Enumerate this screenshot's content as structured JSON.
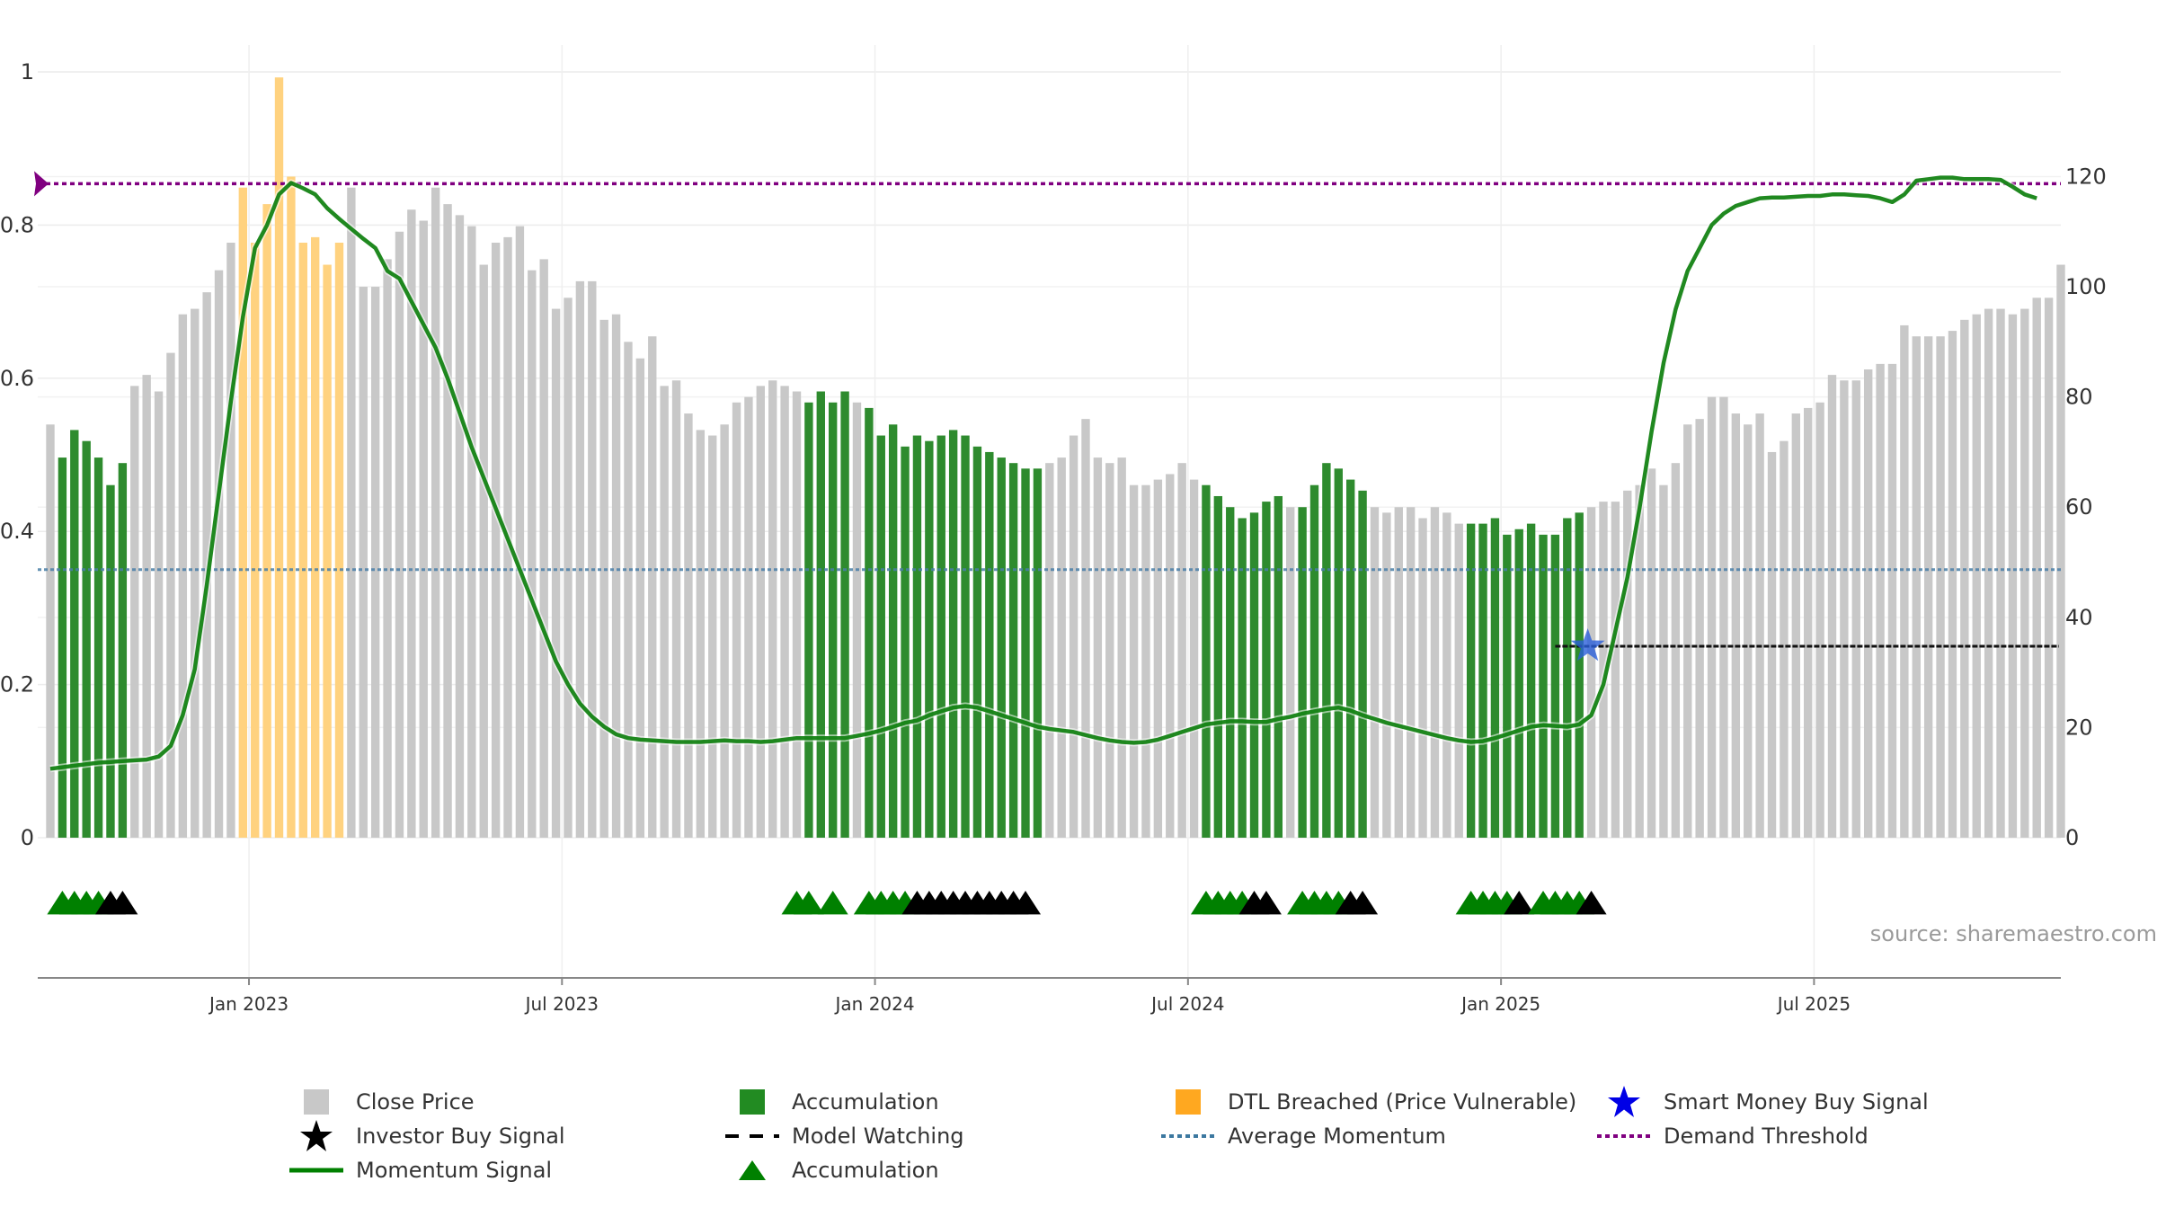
{
  "chart_data": {
    "type": "bar",
    "title": "",
    "xlabel": "",
    "ylabel": "",
    "left_ylim": [
      0,
      1.0
    ],
    "right_ylim": [
      0,
      139
    ],
    "left_ticks": [
      "0",
      "0.2",
      "0.4",
      "0.6",
      "0.8",
      "1"
    ],
    "right_ticks": [
      "0",
      "20",
      "40",
      "60",
      "80",
      "100",
      "120"
    ],
    "x_ticks": [
      "Jan 2023",
      "Jul 2023",
      "Jan 2024",
      "Jul 2024",
      "Jan 2025",
      "Jul 2025"
    ],
    "grid": true,
    "legend_position": "bottom",
    "close_price": [
      75,
      69,
      74,
      72,
      69,
      64,
      68,
      82,
      84,
      81,
      88,
      95,
      96,
      99,
      103,
      108,
      118,
      108,
      115,
      138,
      120,
      108,
      109,
      104,
      108,
      118,
      100,
      100,
      105,
      110,
      114,
      112,
      118,
      115,
      113,
      111,
      104,
      108,
      109,
      111,
      103,
      105,
      96,
      98,
      101,
      101,
      94,
      95,
      90,
      87,
      91,
      82,
      83,
      77,
      74,
      73,
      75,
      79,
      80,
      82,
      83,
      82,
      81,
      79,
      81,
      79,
      81,
      79,
      78,
      73,
      75,
      71,
      73,
      72,
      73,
      74,
      73,
      71,
      70,
      69,
      68,
      67,
      67,
      68,
      69,
      73,
      76,
      69,
      68,
      69,
      64,
      64,
      65,
      66,
      68,
      65,
      64,
      62,
      60,
      58,
      59,
      61,
      62,
      60,
      60,
      64,
      68,
      67,
      65,
      63,
      60,
      59,
      60,
      60,
      58,
      60,
      59,
      57,
      57,
      57,
      58,
      55,
      56,
      57,
      55,
      55,
      58,
      59,
      60,
      61,
      61,
      63,
      64,
      67,
      64,
      68,
      75,
      76,
      80,
      80,
      77,
      75,
      77,
      70,
      72,
      77,
      78,
      79,
      84,
      83,
      83,
      85,
      86,
      86,
      93,
      91,
      91,
      91,
      92,
      94,
      95,
      96,
      96,
      95,
      96,
      98,
      98,
      104
    ],
    "accumulation_bar_indices": [
      1,
      2,
      3,
      4,
      5,
      6,
      63,
      64,
      65,
      66,
      68,
      69,
      70,
      71,
      72,
      73,
      74,
      75,
      76,
      77,
      78,
      79,
      80,
      81,
      82,
      96,
      97,
      98,
      99,
      100,
      101,
      102,
      104,
      105,
      106,
      107,
      108,
      109,
      118,
      119,
      120,
      121,
      122,
      123,
      124,
      125,
      126,
      127
    ],
    "dtl_bar_indices": [
      16,
      17,
      18,
      19,
      20,
      21,
      22,
      23,
      24
    ],
    "momentum": [
      0.09,
      0.092,
      0.094,
      0.096,
      0.098,
      0.099,
      0.1,
      0.101,
      0.102,
      0.106,
      0.12,
      0.16,
      0.22,
      0.33,
      0.45,
      0.57,
      0.68,
      0.77,
      0.8,
      0.84,
      0.855,
      0.848,
      0.84,
      0.822,
      0.808,
      0.795,
      0.782,
      0.77,
      0.74,
      0.73,
      0.7,
      0.67,
      0.64,
      0.6,
      0.555,
      0.51,
      0.47,
      0.43,
      0.39,
      0.35,
      0.31,
      0.27,
      0.23,
      0.2,
      0.175,
      0.158,
      0.145,
      0.135,
      0.13,
      0.128,
      0.127,
      0.126,
      0.125,
      0.125,
      0.125,
      0.126,
      0.127,
      0.126,
      0.126,
      0.125,
      0.126,
      0.128,
      0.13,
      0.13,
      0.13,
      0.13,
      0.13,
      0.133,
      0.136,
      0.14,
      0.145,
      0.15,
      0.153,
      0.16,
      0.165,
      0.17,
      0.172,
      0.17,
      0.165,
      0.16,
      0.155,
      0.15,
      0.145,
      0.142,
      0.14,
      0.138,
      0.134,
      0.13,
      0.127,
      0.125,
      0.124,
      0.125,
      0.128,
      0.133,
      0.138,
      0.143,
      0.148,
      0.15,
      0.152,
      0.152,
      0.151,
      0.151,
      0.155,
      0.158,
      0.162,
      0.165,
      0.168,
      0.17,
      0.166,
      0.16,
      0.155,
      0.15,
      0.146,
      0.142,
      0.138,
      0.134,
      0.13,
      0.127,
      0.125,
      0.126,
      0.13,
      0.135,
      0.14,
      0.145,
      0.147,
      0.146,
      0.145,
      0.148,
      0.16,
      0.2,
      0.27,
      0.34,
      0.43,
      0.53,
      0.62,
      0.69,
      0.74,
      0.77,
      0.8,
      0.815,
      0.825,
      0.83,
      0.835,
      0.836,
      0.836,
      0.837,
      0.838,
      0.838,
      0.84,
      0.84,
      0.839,
      0.838,
      0.835,
      0.83,
      0.84,
      0.858,
      0.86,
      0.862,
      0.862,
      0.86,
      0.86,
      0.86,
      0.859,
      0.85,
      0.84,
      0.835
    ],
    "average_momentum": 0.35,
    "demand_threshold": 0.854,
    "model_watching_level": 0.25,
    "triangles": [
      {
        "i": 1,
        "color": "green"
      },
      {
        "i": 2,
        "color": "green"
      },
      {
        "i": 3,
        "color": "green"
      },
      {
        "i": 4,
        "color": "green"
      },
      {
        "i": 5,
        "color": "black"
      },
      {
        "i": 6,
        "color": "black"
      },
      {
        "i": 62,
        "color": "green"
      },
      {
        "i": 63,
        "color": "green"
      },
      {
        "i": 65,
        "color": "green"
      },
      {
        "i": 68,
        "color": "green"
      },
      {
        "i": 69,
        "color": "green"
      },
      {
        "i": 70,
        "color": "green"
      },
      {
        "i": 71,
        "color": "green"
      },
      {
        "i": 72,
        "color": "black"
      },
      {
        "i": 73,
        "color": "black"
      },
      {
        "i": 74,
        "color": "black"
      },
      {
        "i": 75,
        "color": "black"
      },
      {
        "i": 76,
        "color": "black"
      },
      {
        "i": 77,
        "color": "black"
      },
      {
        "i": 78,
        "color": "black"
      },
      {
        "i": 79,
        "color": "black"
      },
      {
        "i": 80,
        "color": "black"
      },
      {
        "i": 81,
        "color": "black"
      },
      {
        "i": 96,
        "color": "green"
      },
      {
        "i": 97,
        "color": "green"
      },
      {
        "i": 98,
        "color": "green"
      },
      {
        "i": 99,
        "color": "green"
      },
      {
        "i": 100,
        "color": "black"
      },
      {
        "i": 101,
        "color": "black"
      },
      {
        "i": 104,
        "color": "green"
      },
      {
        "i": 105,
        "color": "green"
      },
      {
        "i": 106,
        "color": "green"
      },
      {
        "i": 107,
        "color": "green"
      },
      {
        "i": 108,
        "color": "black"
      },
      {
        "i": 109,
        "color": "black"
      },
      {
        "i": 118,
        "color": "green"
      },
      {
        "i": 119,
        "color": "green"
      },
      {
        "i": 120,
        "color": "green"
      },
      {
        "i": 121,
        "color": "green"
      },
      {
        "i": 122,
        "color": "black"
      },
      {
        "i": 124,
        "color": "green"
      },
      {
        "i": 125,
        "color": "green"
      },
      {
        "i": 126,
        "color": "green"
      },
      {
        "i": 127,
        "color": "green"
      },
      {
        "i": 128,
        "color": "black"
      }
    ],
    "smart_money_signal": {
      "i": 128,
      "level": 0.25
    },
    "series": [
      {
        "name": "Close Price",
        "color": "#c8c8c8"
      },
      {
        "name": "Accumulation",
        "color": "#228b22"
      },
      {
        "name": "DTL Breached (Price Vulnerable)",
        "color": "#ffd27f"
      },
      {
        "name": "Smart Money Buy Signal",
        "color": "#0000e6"
      },
      {
        "name": "Investor Buy Signal",
        "color": "#000000"
      },
      {
        "name": "Model Watching",
        "color": "#000000"
      },
      {
        "name": "Average Momentum",
        "color": "#3c78a0"
      },
      {
        "name": "Demand Threshold",
        "color": "#800080"
      },
      {
        "name": "Momentum Signal",
        "color": "#008000"
      },
      {
        "name": "Accumulation",
        "color": "#008000"
      }
    ]
  },
  "legend": {
    "close_price": "Close Price",
    "accumulation": "Accumulation",
    "dtl": "DTL Breached (Price Vulnerable)",
    "smart_money": "Smart Money Buy Signal",
    "investor_buy": "Investor Buy Signal",
    "model_watching": "Model Watching",
    "average_momentum": "Average Momentum",
    "demand_threshold": "Demand Threshold",
    "momentum_signal": "Momentum Signal",
    "accumulation_triangle": "Accumulation"
  },
  "source": "source: sharemaestro.com"
}
